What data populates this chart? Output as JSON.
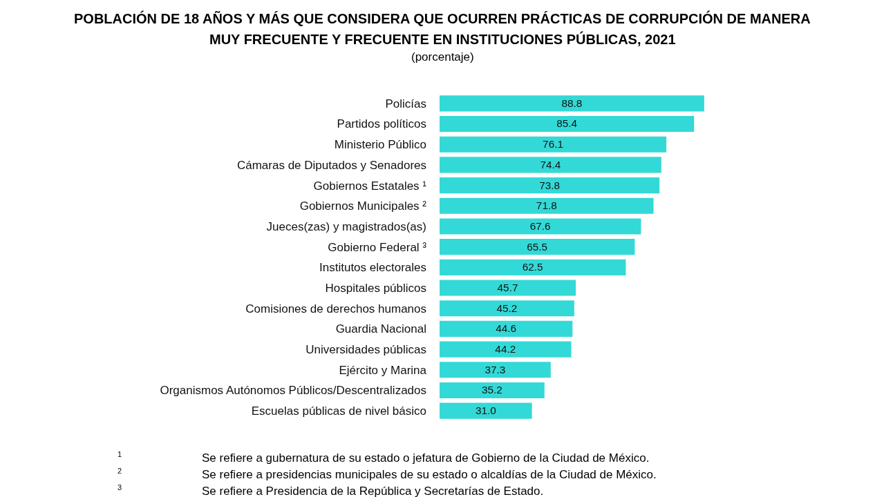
{
  "chart_data": {
    "type": "bar",
    "orientation": "horizontal",
    "title": "POBLACIÓN DE 18 AÑOS Y MÁS QUE CONSIDERA QUE OCURREN PRÁCTICAS DE CORRUPCIÓN DE MANERA MUY FRECUENTE Y FRECUENTE EN INSTITUCIONES PÚBLICAS, 2021",
    "subtitle": "(porcentaje)",
    "categories": [
      "Policías",
      "Partidos políticos",
      "Ministerio Público",
      "Cámaras de Diputados y Senadores",
      "Gobiernos Estatales ¹",
      "Gobiernos Municipales ²",
      "Jueces(zas) y magistrados(as)",
      "Gobierno Federal ³",
      "Institutos electorales",
      "Hospitales públicos",
      "Comisiones de derechos humanos",
      "Guardia Nacional",
      "Universidades públicas",
      "Ejército y Marina",
      "Organismos Autónomos Públicos/Descentralizados",
      "Escuelas públicas de nivel básico"
    ],
    "values": [
      88.8,
      85.4,
      76.1,
      74.4,
      73.8,
      71.8,
      67.6,
      65.5,
      62.5,
      45.7,
      45.2,
      44.6,
      44.2,
      37.3,
      35.2,
      31.0
    ],
    "color": "#33d9d6",
    "value_labels": [
      "88.8",
      "85.4",
      "76.1",
      "74.4",
      "73.8",
      "71.8",
      "67.6",
      "65.5",
      "62.5",
      "45.7",
      "45.2",
      "44.6",
      "44.2",
      "37.3",
      "35.2",
      "31.0"
    ],
    "legend": false,
    "annotations": [
      "1 Se refiere a gubernatura de su estado o jefatura de Gobierno de la Ciudad de México.",
      "2 Se refiere a presidencias municipales de su estado o alcaldías de la Ciudad de México.",
      "3 Se refiere a Presidencia de la República y Secretarías de Estado."
    ]
  }
}
